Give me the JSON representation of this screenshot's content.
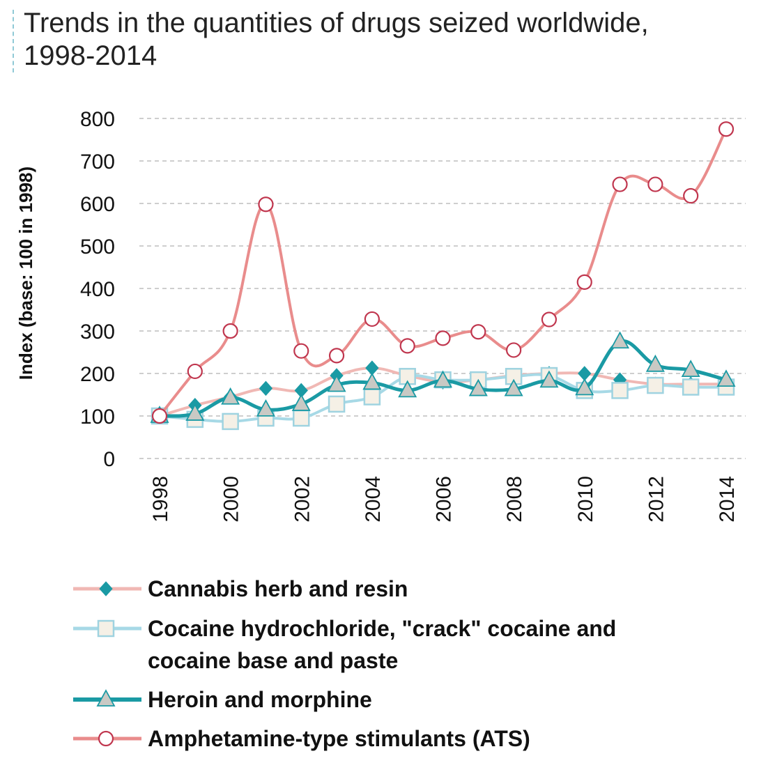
{
  "chart_data": {
    "type": "line",
    "title_line1": "Trends in the quantities of drugs seized worldwide,",
    "title_line2": "1998-2014",
    "xlabel": "",
    "ylabel": "Index (base: 100 in 1998)",
    "ylim": [
      0,
      800
    ],
    "yticks": [
      0,
      100,
      200,
      300,
      400,
      500,
      600,
      700,
      800
    ],
    "xlim": [
      1998,
      2014
    ],
    "xticks": [
      1998,
      2000,
      2002,
      2004,
      2006,
      2008,
      2010,
      2012,
      2014
    ],
    "grid": true,
    "legend_placement": "bottom",
    "x": [
      1998,
      1999,
      2000,
      2001,
      2002,
      2003,
      2004,
      2005,
      2006,
      2007,
      2008,
      2009,
      2010,
      2011,
      2012,
      2013,
      2014
    ],
    "series": [
      {
        "name": "Cannabis herb and resin",
        "legend_lines": [
          "Cannabis herb and resin"
        ],
        "line_color": "#f0b8b4",
        "marker_color": "#1a9aa4",
        "marker": "diamond",
        "values": [
          100,
          125,
          145,
          165,
          160,
          195,
          213,
          195,
          180,
          185,
          195,
          200,
          200,
          185,
          175,
          175,
          175
        ]
      },
      {
        "name": "Cocaine hydrochloride, \"crack\" cocaine and cocaine base and paste",
        "legend_lines": [
          "Cocaine hydrochloride, \"crack\" cocaine and",
          "cocaine base and paste"
        ],
        "line_color": "#a7d9e6",
        "marker_color": "#f5f0e6",
        "marker": "square",
        "values": [
          100,
          92,
          87,
          95,
          95,
          128,
          145,
          193,
          185,
          185,
          193,
          195,
          160,
          160,
          172,
          168,
          168
        ]
      },
      {
        "name": "Heroin and morphine",
        "legend_lines": [
          "Heroin and morphine"
        ],
        "line_color": "#1a9aa4",
        "marker_color": "#c9c9c4",
        "marker": "triangle",
        "values": [
          100,
          105,
          143,
          115,
          128,
          173,
          178,
          160,
          183,
          163,
          163,
          183,
          165,
          275,
          220,
          208,
          185
        ]
      },
      {
        "name": "Amphetamine-type stimulants (ATS)",
        "legend_lines": [
          "Amphetamine-type stimulants (ATS)"
        ],
        "line_color": "#e98c8c",
        "marker_color": "#ffffff",
        "marker_stroke": "#c0364e",
        "marker": "circle",
        "values": [
          100,
          205,
          300,
          598,
          253,
          242,
          328,
          265,
          283,
          298,
          255,
          327,
          415,
          645,
          645,
          618,
          775
        ]
      }
    ]
  }
}
